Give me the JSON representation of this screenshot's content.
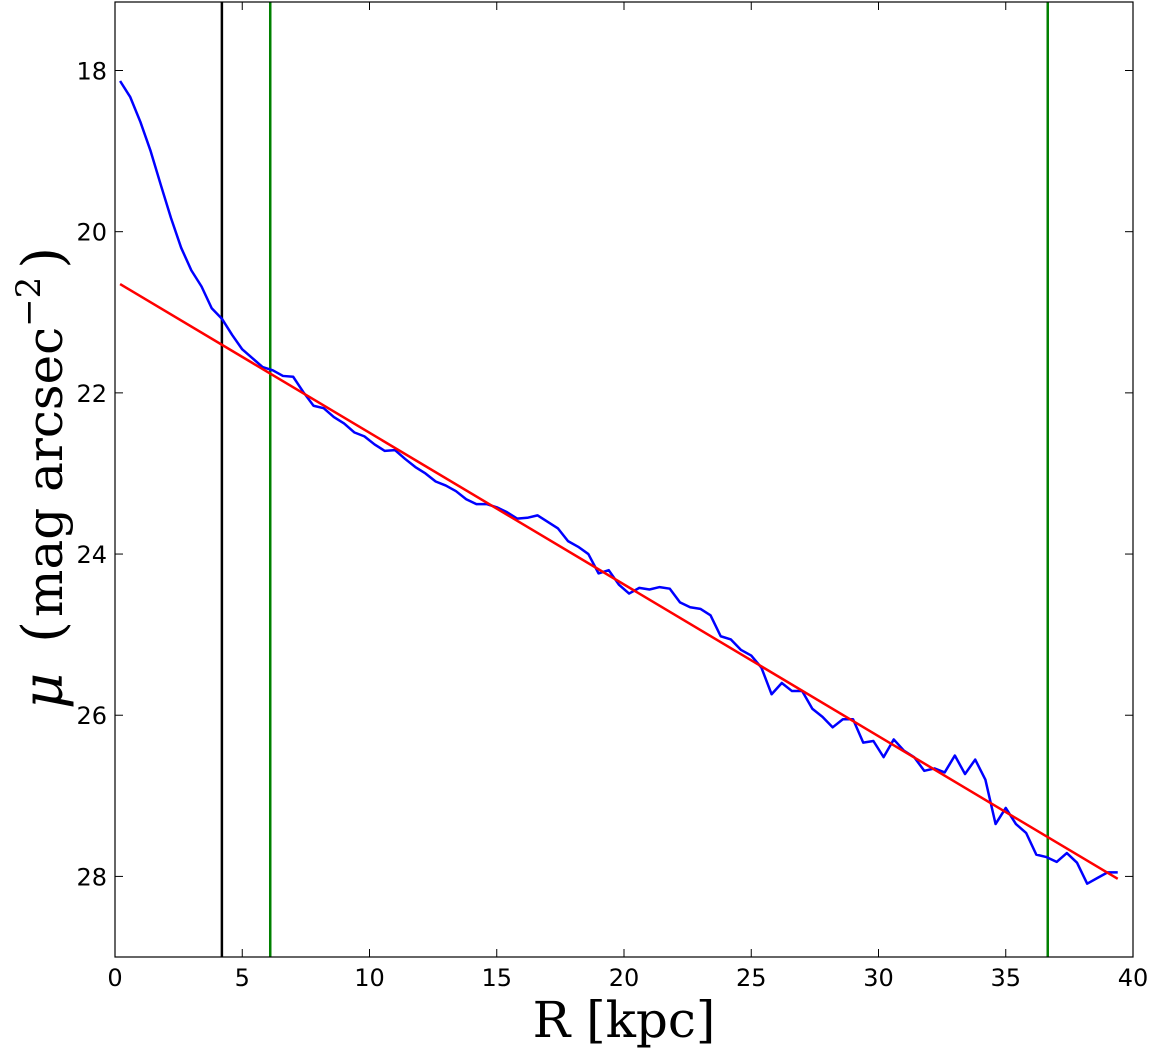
{
  "chart_data": {
    "type": "line",
    "xlabel": "R [kpc]",
    "ylabel": {
      "symbol": "μ",
      "open": "(",
      "text": "mag arcsec",
      "exponent": "−2",
      "close": ")"
    },
    "xlim": [
      0,
      40
    ],
    "ylim": [
      29,
      17.15
    ],
    "y_inverted": true,
    "grid": false,
    "x_ticks": [
      0,
      5,
      10,
      15,
      20,
      25,
      30,
      35,
      40
    ],
    "y_ticks": [
      18,
      20,
      22,
      24,
      26,
      28
    ],
    "colors": {
      "profile": "#0000ff",
      "fit": "#ff0000",
      "inner_marker": "#000000",
      "fit_range": "#008000"
    },
    "series": [
      {
        "role": "profile",
        "x": [
          0.2,
          0.6,
          1.0,
          1.4,
          1.8,
          2.2,
          2.6,
          3.0,
          3.4,
          3.8,
          4.2,
          4.6,
          5.0,
          5.4,
          5.8,
          6.2,
          6.6,
          7.0,
          7.4,
          7.8,
          8.2,
          8.6,
          9.0,
          9.4,
          9.8,
          10.2,
          10.6,
          11.0,
          11.4,
          11.8,
          12.2,
          12.6,
          13.0,
          13.4,
          13.8,
          14.2,
          14.6,
          15.0,
          15.4,
          15.8,
          16.2,
          16.6,
          17.0,
          17.4,
          17.8,
          18.2,
          18.6,
          19.0,
          19.4,
          19.8,
          20.2,
          20.6,
          21.0,
          21.4,
          21.8,
          22.2,
          22.6,
          23.0,
          23.4,
          23.8,
          24.2,
          24.6,
          25.0,
          25.4,
          25.8,
          26.2,
          26.6,
          27.0,
          27.4,
          27.8,
          28.2,
          28.6,
          29.0,
          29.4,
          29.8,
          30.2,
          30.6,
          31.0,
          31.4,
          31.8,
          32.2,
          32.6,
          33.0,
          33.4,
          33.8,
          34.2,
          34.6,
          35.0,
          35.4,
          35.8,
          36.2,
          36.6,
          37.0,
          37.4,
          37.8,
          38.2,
          38.6,
          39.0,
          39.4
        ],
        "y": [
          18.13,
          18.33,
          18.64,
          19.0,
          19.42,
          19.83,
          20.2,
          20.48,
          20.68,
          20.95,
          21.08,
          21.28,
          21.46,
          21.57,
          21.68,
          21.72,
          21.79,
          21.8,
          21.99,
          22.16,
          22.19,
          22.3,
          22.38,
          22.49,
          22.54,
          22.64,
          22.72,
          22.71,
          22.82,
          22.92,
          23.0,
          23.1,
          23.15,
          23.22,
          23.32,
          23.38,
          23.38,
          23.42,
          23.48,
          23.56,
          23.55,
          23.52,
          23.6,
          23.68,
          23.84,
          23.91,
          24.0,
          24.24,
          24.2,
          24.38,
          24.49,
          24.42,
          24.44,
          24.41,
          24.43,
          24.6,
          24.66,
          24.68,
          24.76,
          25.02,
          25.06,
          25.19,
          25.26,
          25.41,
          25.74,
          25.6,
          25.7,
          25.7,
          25.92,
          26.02,
          26.15,
          26.05,
          26.05,
          26.34,
          26.32,
          26.52,
          26.3,
          26.44,
          26.52,
          26.69,
          26.66,
          26.71,
          26.5,
          26.73,
          26.55,
          26.8,
          27.35,
          27.15,
          27.35,
          27.46,
          27.73,
          27.76,
          27.82,
          27.71,
          27.83,
          28.09,
          28.02,
          27.95,
          27.95
        ]
      },
      {
        "role": "fit",
        "x": [
          0.2,
          39.4
        ],
        "y": [
          20.65,
          28.03
        ]
      }
    ],
    "vlines": [
      {
        "role": "inner_marker",
        "x": 4.2
      },
      {
        "role": "fit_range",
        "x": 6.1
      },
      {
        "role": "fit_range",
        "x": 36.65
      }
    ]
  }
}
